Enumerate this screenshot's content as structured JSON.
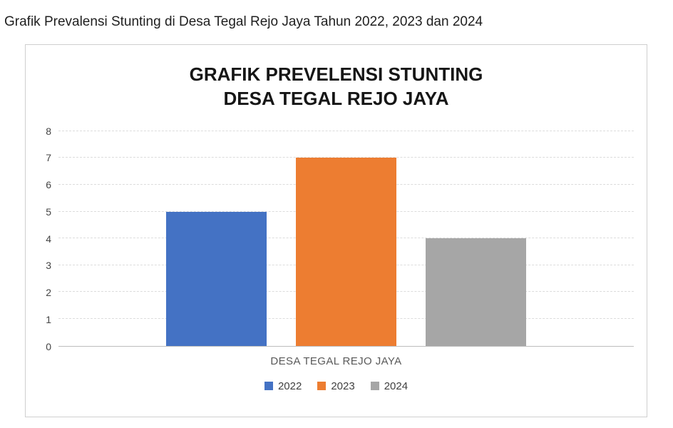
{
  "caption": "Grafik Prevalensi Stunting di Desa Tegal Rejo Jaya Tahun 2022, 2023 dan 2024",
  "chart_data": {
    "type": "bar",
    "title_line1": "GRAFIK PREVELENSI STUNTING",
    "title_line2": "DESA TEGAL REJO JAYA",
    "categories": [
      "2022",
      "2023",
      "2024"
    ],
    "values": [
      5,
      7,
      4
    ],
    "colors": [
      "#4472c4",
      "#ed7d31",
      "#a6a6a6"
    ],
    "xlabel": "DESA TEGAL REJO JAYA",
    "ylim": [
      0,
      8
    ],
    "ytick_interval": 1,
    "grid": true,
    "legend_position": "bottom"
  }
}
